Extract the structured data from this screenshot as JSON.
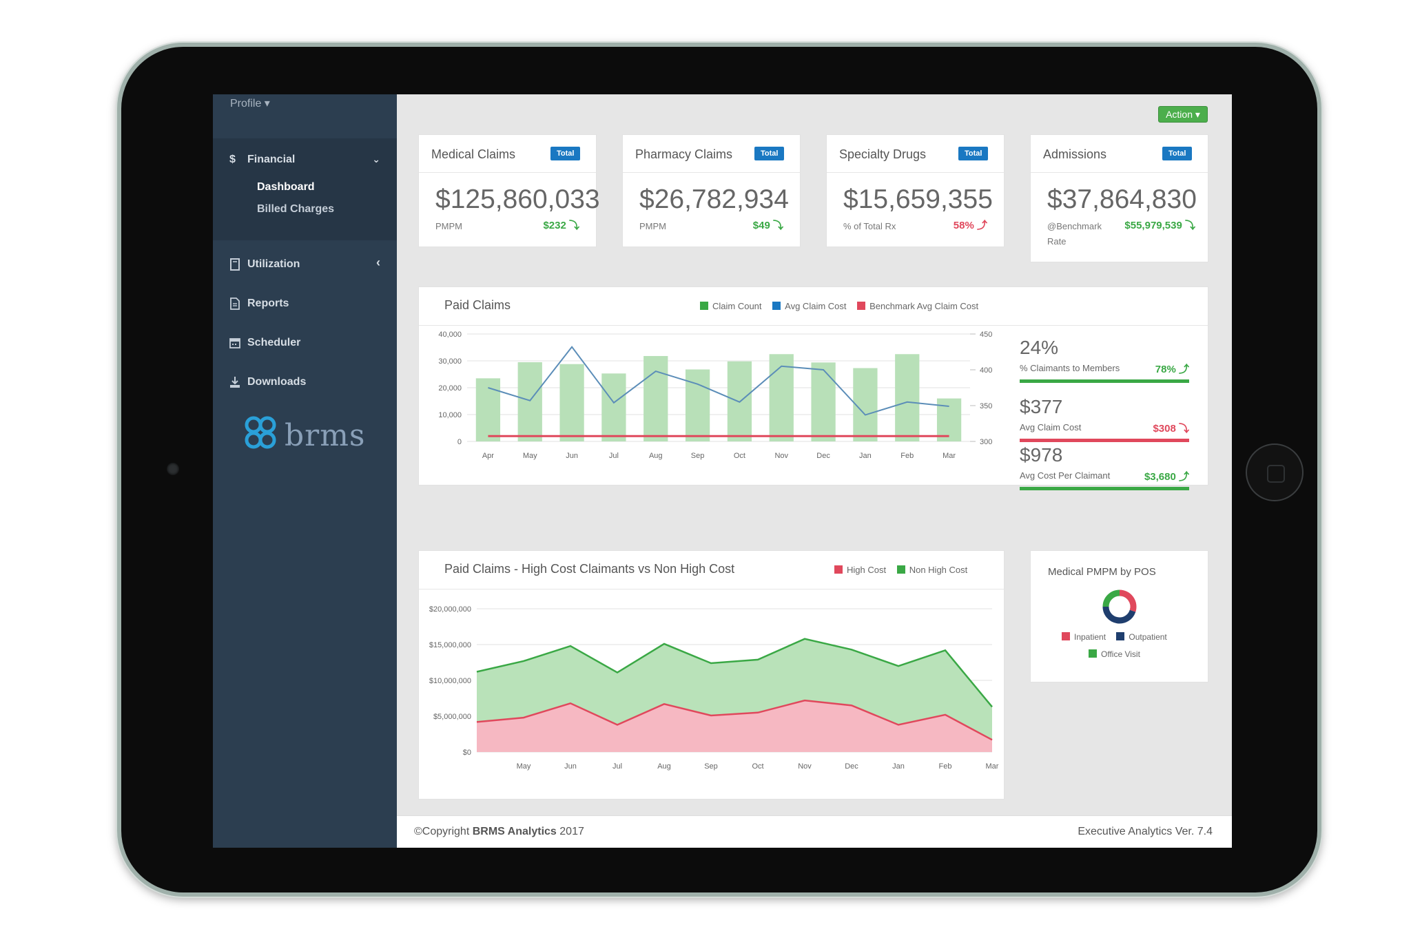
{
  "sidebar": {
    "profile_label": "Profile ▾",
    "financial_label": "Financial",
    "financial_chevron": "⌄",
    "sub_items": [
      "Dashboard",
      "Billed Charges"
    ],
    "items": [
      {
        "label": "Utilization",
        "chevron": "‹"
      },
      {
        "label": "Reports"
      },
      {
        "label": "Scheduler"
      },
      {
        "label": "Downloads"
      }
    ],
    "logo_text": "brms"
  },
  "header": {
    "action_label": "Action ▾"
  },
  "cards": [
    {
      "title": "Medical Claims",
      "badge": "Total",
      "value": "$125,860,033",
      "sub": "PMPM",
      "delta": "$232 ⤵",
      "delta_color": "#3aa845"
    },
    {
      "title": "Pharmacy Claims",
      "badge": "Total",
      "value": "$26,782,934",
      "sub": "PMPM",
      "delta": "$49 ⤵",
      "delta_color": "#3aa845"
    },
    {
      "title": "Specialty Drugs",
      "badge": "Total",
      "value": "$15,659,355",
      "sub": "% of Total Rx",
      "delta": "58% ⤴",
      "delta_color": "#e0485c"
    },
    {
      "title": "Admissions",
      "badge": "Total",
      "value": "$37,864,830",
      "sub": "@Benchmark Rate",
      "delta": "$55,979,539 ⤵",
      "delta_color": "#3aa845"
    }
  ],
  "paid_claims": {
    "title": "Paid Claims",
    "legend": [
      "Claim Count",
      "Avg Claim Cost",
      "Benchmark Avg Claim Cost"
    ],
    "stats": [
      {
        "value": "24%",
        "label": "% Claimants to Members",
        "delta": "78% ⤴",
        "color": "#3aa845"
      },
      {
        "value": "$377",
        "label": "Avg Claim Cost",
        "delta": "$308 ⤵",
        "color": "#e0485c"
      },
      {
        "value": "$978",
        "label": "Avg Cost Per Claimant",
        "delta": "$3,680 ⤴",
        "color": "#3aa845"
      }
    ]
  },
  "high_cost": {
    "title": "Paid Claims - High Cost Claimants vs Non High Cost",
    "legend": [
      "High Cost",
      "Non High Cost"
    ]
  },
  "pmpm_pos": {
    "title": "Medical PMPM by POS",
    "legend": [
      "Inpatient",
      "Outpatient",
      "Office Visit"
    ]
  },
  "footer": {
    "copyright_prefix": "©Copyright ",
    "company": "BRMS Analytics",
    "year": " 2017",
    "version": "Executive Analytics Ver. 7.4"
  },
  "colors": {
    "green": "#3aa845",
    "red": "#e0485c",
    "blue": "#1a78c2",
    "bar_green": "#b8e0b8",
    "line_blue": "#5b8db8",
    "area_green": "#b9e2b9",
    "area_red": "#f6b8c2"
  },
  "chart_data": [
    {
      "type": "bar",
      "title": "Paid Claims",
      "categories": [
        "Apr",
        "May",
        "Jun",
        "Jul",
        "Aug",
        "Sep",
        "Oct",
        "Nov",
        "Dec",
        "Jan",
        "Feb",
        "Mar"
      ],
      "yticks_left": [
        "0",
        "10,000",
        "20,000",
        "30,000",
        "40,000"
      ],
      "yticks_right": [
        "300",
        "350",
        "400",
        "450"
      ],
      "ylim": [
        0,
        40000
      ],
      "ylim_right": [
        300,
        450
      ],
      "series": [
        {
          "name": "Claim Count",
          "type": "bar",
          "axis": "left",
          "values": [
            23500,
            29500,
            28800,
            25300,
            31800,
            26800,
            29800,
            32500,
            29400,
            27300,
            32500,
            16000
          ]
        },
        {
          "name": "Avg Claim Cost",
          "type": "line",
          "axis": "right",
          "values": [
            375,
            357,
            432,
            354,
            398,
            380,
            355,
            405,
            400,
            337,
            355,
            349
          ]
        },
        {
          "name": "Benchmark Avg Claim Cost",
          "type": "line",
          "axis": "left",
          "values": [
            2000,
            2000,
            2000,
            2000,
            2000,
            2000,
            2000,
            2000,
            2000,
            2000,
            2000,
            2000
          ]
        }
      ]
    },
    {
      "type": "area",
      "title": "Paid Claims - High Cost Claimants vs Non High Cost",
      "categories": [
        "",
        "May",
        "Jun",
        "Jul",
        "Aug",
        "Sep",
        "Oct",
        "Nov",
        "Dec",
        "Jan",
        "Feb",
        "Mar"
      ],
      "yticks": [
        "$0",
        "$5,000,000",
        "$10,000,000",
        "$15,000,000",
        "$20,000,000"
      ],
      "ylim": [
        0,
        20000000
      ],
      "series": [
        {
          "name": "High Cost",
          "values": [
            4200000,
            4800000,
            6800000,
            3800000,
            6700000,
            5100000,
            5500000,
            7200000,
            6500000,
            3800000,
            5200000,
            1700000
          ]
        },
        {
          "name": "Non High Cost",
          "values": [
            11200000,
            12700000,
            14800000,
            11100000,
            15100000,
            12400000,
            12900000,
            15800000,
            14300000,
            12000000,
            14200000,
            6300000
          ]
        }
      ]
    },
    {
      "type": "pie",
      "title": "Medical PMPM by POS",
      "labels": [
        "Inpatient",
        "Outpatient",
        "Office Visit"
      ],
      "values": [
        30,
        45,
        25
      ]
    }
  ]
}
